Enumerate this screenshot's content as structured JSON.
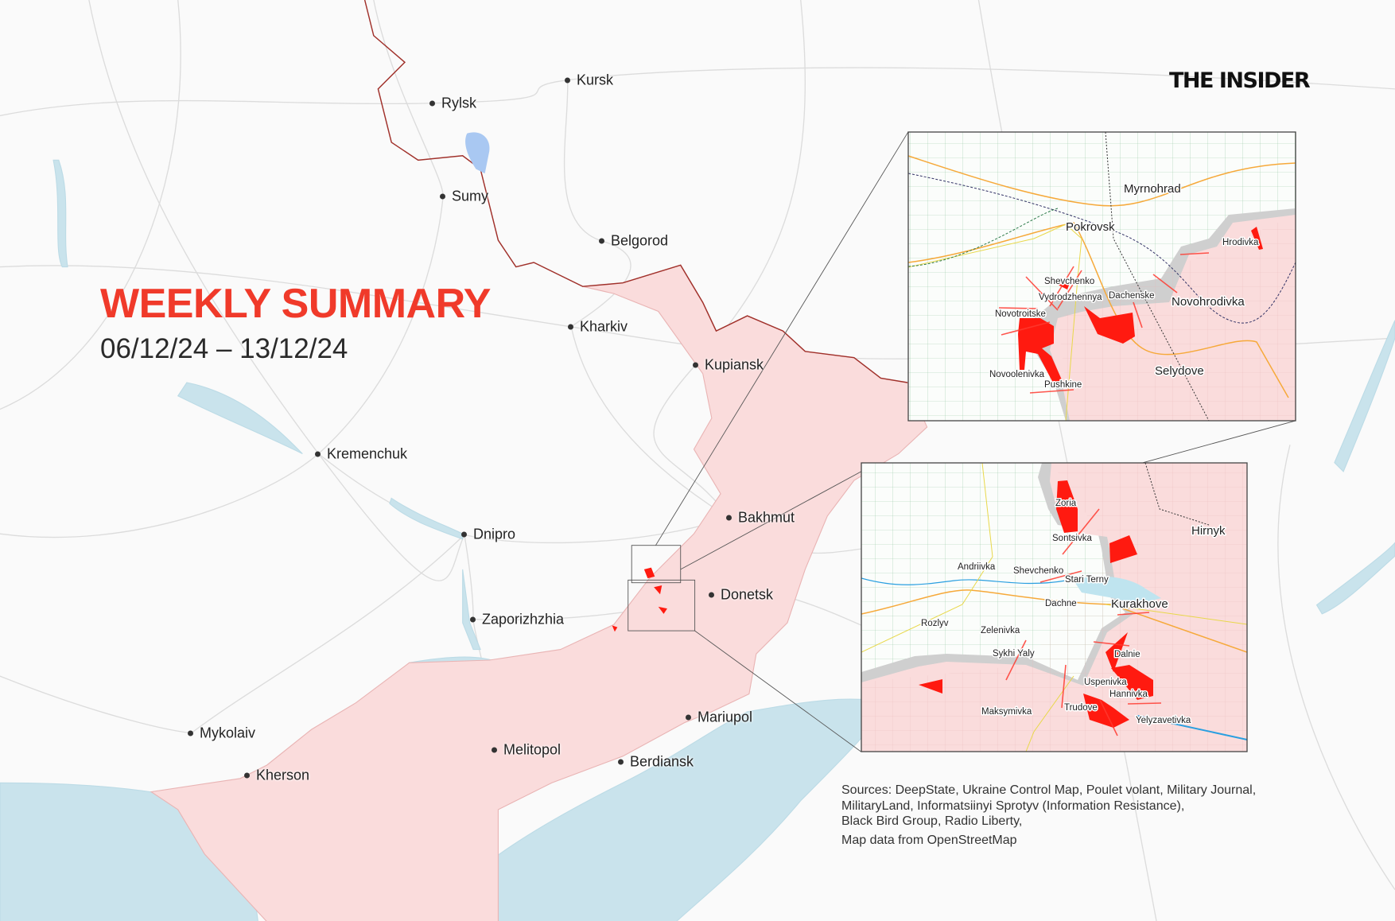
{
  "brand": "THE INSIDER",
  "title": "WEEKLY SUMMARY",
  "date_range": "06/12/24 – 13/12/24",
  "colors": {
    "accent": "#f03a2a",
    "occupied": "#fadcdc",
    "advance": "#ff1a10",
    "water": "#c9e3ec",
    "border": "#a0302a",
    "grey_zone": "#cfcfcf"
  },
  "cities": [
    "Kursk",
    "Rylsk",
    "Sumy",
    "Belgorod",
    "Kharkiv",
    "Kupiansk",
    "Kremenchuk",
    "Dnipro",
    "Bakhmut",
    "Donetsk",
    "Zaporizhzhia",
    "Mariupol",
    "Melitopol",
    "Berdiansk",
    "Mykolaiv",
    "Kherson"
  ],
  "inset_pokrovsk": {
    "labels": [
      "Myrnohrad",
      "Pokrovsk",
      "Shevchenko",
      "Vydrodzhennya",
      "Dachenske",
      "Novohrodivka",
      "Hrodivka",
      "Novotroitske",
      "Novoolenivka",
      "Pushkine",
      "Selydove"
    ]
  },
  "inset_kurakhove": {
    "labels": [
      "Zoria",
      "Sontsivka",
      "Hirnyk",
      "Andriivka",
      "Shevchenko",
      "Stari Terny",
      "Dachne",
      "Kurakhove",
      "Rozlyv",
      "Zelenivka",
      "Sykhi Yaly",
      "Dalnie",
      "Uspenivka",
      "Hannivka",
      "Maksymivka",
      "Trudove",
      "Yelyzavetivka"
    ]
  },
  "sources": {
    "lines": [
      "Sources: DeepState, Ukraine Control Map, Poulet volant, Military Journal,",
      "MilitaryLand, Informatsiinyi Sprotyv (Information Resistance),",
      "Black Bird Group, Radio Liberty,"
    ],
    "osm": "Map data from OpenStreetMap"
  }
}
